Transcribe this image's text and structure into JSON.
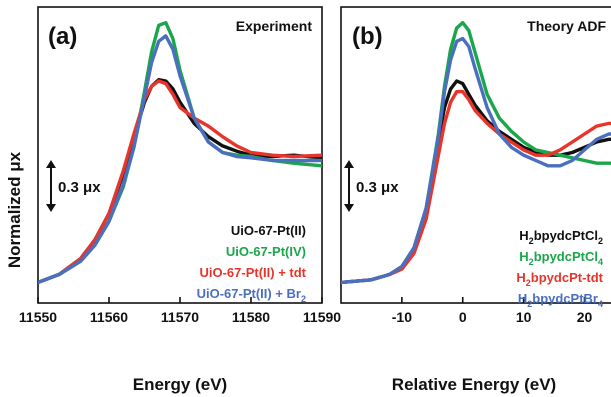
{
  "colors": {
    "black": "#111111",
    "green": "#1aa64a",
    "red": "#e8352b",
    "blue": "#4a6fbf"
  },
  "y_axis_title": "Normalized μx",
  "chart_data": [
    {
      "type": "line",
      "panel": "(a)",
      "title": "Experiment",
      "xlabel": "Energy (eV)",
      "ylabel": "Normalized μx",
      "xlim": [
        11550,
        11590
      ],
      "ylim": [
        0,
        1.0
      ],
      "xticks": [
        "11550",
        "11560",
        "11570",
        "11580",
        "11590"
      ],
      "scale_bar": "0.3 μx",
      "grid": false,
      "legend": "bottom-right",
      "series": [
        {
          "name": "UiO-67-Pt(II)",
          "color": "#111111",
          "x": [
            11550,
            11553,
            11556,
            11558,
            11560,
            11562,
            11563.5,
            11565,
            11566,
            11567,
            11568,
            11569,
            11570,
            11572,
            11574,
            11576,
            11578,
            11580,
            11583,
            11586,
            11590
          ],
          "y": [
            0.04,
            0.07,
            0.13,
            0.2,
            0.3,
            0.45,
            0.59,
            0.72,
            0.78,
            0.805,
            0.8,
            0.77,
            0.72,
            0.64,
            0.59,
            0.555,
            0.535,
            0.52,
            0.515,
            0.52,
            0.51
          ]
        },
        {
          "name": "UiO-67-Pt(IV)",
          "color": "#1aa64a",
          "x": [
            11550,
            11553,
            11556,
            11558,
            11560,
            11562,
            11563.5,
            11565,
            11566,
            11567,
            11568,
            11569,
            11570,
            11572,
            11574,
            11576,
            11578,
            11580,
            11583,
            11586,
            11590
          ],
          "y": [
            0.04,
            0.07,
            0.12,
            0.18,
            0.27,
            0.4,
            0.55,
            0.76,
            0.91,
            1.01,
            1.02,
            0.96,
            0.84,
            0.66,
            0.57,
            0.53,
            0.52,
            0.515,
            0.5,
            0.49,
            0.48
          ]
        },
        {
          "name": "UiO-67-Pt(II) + tdt",
          "color": "#e8352b",
          "x": [
            11550,
            11553,
            11556,
            11558,
            11560,
            11562,
            11563.5,
            11565,
            11566,
            11567,
            11568,
            11569,
            11570,
            11572,
            11574,
            11576,
            11578,
            11580,
            11583,
            11586,
            11590
          ],
          "y": [
            0.04,
            0.07,
            0.13,
            0.2,
            0.3,
            0.46,
            0.6,
            0.73,
            0.78,
            0.8,
            0.79,
            0.75,
            0.7,
            0.66,
            0.63,
            0.59,
            0.555,
            0.53,
            0.52,
            0.515,
            0.52
          ]
        },
        {
          "name": "UiO-67-Pt(II) + Br2",
          "color": "#4a6fbf",
          "x": [
            11550,
            11553,
            11556,
            11558,
            11560,
            11562,
            11563.5,
            11565,
            11566,
            11567,
            11568,
            11569,
            11570,
            11572,
            11574,
            11576,
            11578,
            11580,
            11583,
            11586,
            11590
          ],
          "y": [
            0.04,
            0.07,
            0.12,
            0.18,
            0.27,
            0.41,
            0.55,
            0.74,
            0.87,
            0.95,
            0.97,
            0.92,
            0.82,
            0.66,
            0.57,
            0.53,
            0.515,
            0.51,
            0.5,
            0.5,
            0.5
          ]
        }
      ]
    },
    {
      "type": "line",
      "panel": "(b)",
      "title": "Theory ADF",
      "xlabel": "Relative Energy (eV)",
      "xlim": [
        -20,
        26
      ],
      "ylim": [
        0,
        1.0
      ],
      "xticks": [
        "-10",
        "0",
        "10",
        "20"
      ],
      "scale_bar": "0.3 μx",
      "grid": false,
      "legend": "bottom-right",
      "series": [
        {
          "name": "H2bpydcPtCl2",
          "color": "#111111",
          "x": [
            -20,
            -15,
            -12,
            -10,
            -8,
            -6,
            -4,
            -3,
            -2,
            -1,
            0,
            1,
            2,
            4,
            6,
            8,
            10,
            12,
            14,
            16,
            18,
            20,
            22,
            24,
            26
          ],
          "y": [
            0.04,
            0.05,
            0.07,
            0.1,
            0.17,
            0.32,
            0.58,
            0.7,
            0.77,
            0.8,
            0.79,
            0.75,
            0.71,
            0.65,
            0.61,
            0.58,
            0.55,
            0.53,
            0.52,
            0.52,
            0.53,
            0.55,
            0.57,
            0.58,
            0.58
          ]
        },
        {
          "name": "H2bpydcPtCl4",
          "color": "#1aa64a",
          "x": [
            -20,
            -15,
            -12,
            -10,
            -8,
            -6,
            -4,
            -3,
            -2,
            -1,
            0,
            1,
            2,
            4,
            6,
            8,
            10,
            12,
            14,
            16,
            18,
            20,
            22,
            24,
            26
          ],
          "y": [
            0.04,
            0.05,
            0.07,
            0.1,
            0.17,
            0.32,
            0.6,
            0.78,
            0.92,
            1.0,
            1.02,
            0.99,
            0.91,
            0.75,
            0.66,
            0.61,
            0.57,
            0.54,
            0.53,
            0.52,
            0.51,
            0.5,
            0.49,
            0.49,
            0.49
          ]
        },
        {
          "name": "H2bpydcPt-tdt",
          "color": "#e8352b",
          "x": [
            -20,
            -15,
            -12,
            -10,
            -8,
            -6,
            -4,
            -3,
            -2,
            -1,
            0,
            1,
            2,
            4,
            6,
            8,
            10,
            12,
            14,
            16,
            18,
            20,
            22,
            24,
            26
          ],
          "y": [
            0.04,
            0.05,
            0.07,
            0.09,
            0.15,
            0.28,
            0.52,
            0.64,
            0.72,
            0.76,
            0.76,
            0.73,
            0.69,
            0.64,
            0.6,
            0.57,
            0.54,
            0.52,
            0.52,
            0.54,
            0.57,
            0.6,
            0.63,
            0.64,
            0.64
          ]
        },
        {
          "name": "H2bpydcPtBr4",
          "color": "#4a6fbf",
          "x": [
            -20,
            -15,
            -12,
            -10,
            -8,
            -6,
            -4,
            -3,
            -2,
            -1,
            0,
            1,
            2,
            4,
            6,
            8,
            10,
            12,
            14,
            16,
            18,
            20,
            22,
            24,
            26
          ],
          "y": [
            0.04,
            0.05,
            0.07,
            0.1,
            0.17,
            0.32,
            0.59,
            0.76,
            0.88,
            0.95,
            0.96,
            0.93,
            0.85,
            0.7,
            0.6,
            0.55,
            0.52,
            0.5,
            0.48,
            0.48,
            0.5,
            0.54,
            0.58,
            0.6,
            0.6
          ]
        }
      ]
    }
  ],
  "legend_a": [
    {
      "text": "UiO-67-Pt(II)",
      "color": "#111111"
    },
    {
      "text": "UiO-67-Pt(IV)",
      "color": "#1aa64a"
    },
    {
      "text": "UiO-67-Pt(II) + tdt",
      "color": "#e8352b"
    },
    {
      "pre": "UiO-67-Pt(II) + Br",
      "sub": "2",
      "post": "",
      "color": "#4a6fbf"
    }
  ],
  "legend_b": [
    {
      "pre": "H",
      "sub": "2",
      "mid": "bpydcPtCl",
      "sub2": "2",
      "post": "",
      "color": "#111111"
    },
    {
      "pre": "H",
      "sub": "2",
      "mid": "bpydcPtCl",
      "sub2": "4",
      "post": "",
      "color": "#1aa64a"
    },
    {
      "pre": "H",
      "sub": "2",
      "mid": "bpydcPt-tdt",
      "sub2": "",
      "post": "",
      "color": "#e8352b"
    },
    {
      "pre": "H",
      "sub": "2",
      "mid": "bpydcPtBr",
      "sub2": "4",
      "post": "",
      "color": "#4a6fbf"
    }
  ]
}
